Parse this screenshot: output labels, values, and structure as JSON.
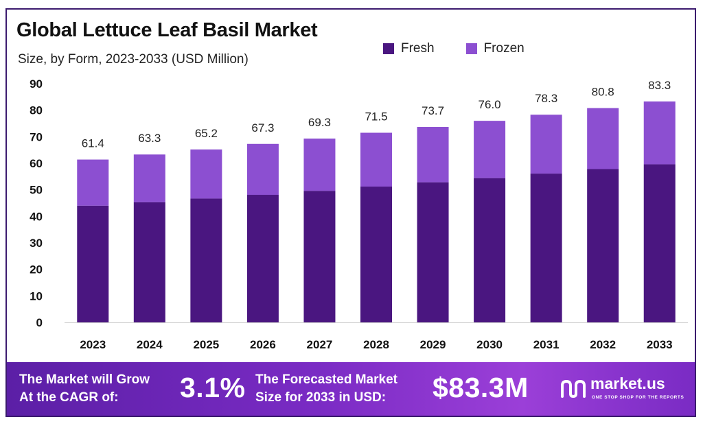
{
  "chart_data": {
    "type": "bar",
    "stacked": true,
    "title": "Global Lettuce Leaf Basil Market",
    "subtitle": "Size, by Form, 2023-2033 (USD Million)",
    "categories": [
      "2023",
      "2024",
      "2025",
      "2026",
      "2027",
      "2028",
      "2029",
      "2030",
      "2031",
      "2032",
      "2033"
    ],
    "series": [
      {
        "name": "Fresh",
        "color": "#4a1680",
        "values": [
          44.0,
          45.3,
          46.7,
          48.1,
          49.6,
          51.2,
          52.8,
          54.4,
          56.1,
          57.8,
          59.6
        ]
      },
      {
        "name": "Frozen",
        "color": "#8c4fd1",
        "values": [
          17.4,
          18.0,
          18.5,
          19.2,
          19.7,
          20.3,
          20.9,
          21.6,
          22.2,
          23.0,
          23.7
        ]
      }
    ],
    "totals": [
      "61.4",
      "63.3",
      "65.2",
      "67.3",
      "69.3",
      "71.5",
      "73.7",
      "76.0",
      "78.3",
      "80.8",
      "83.3"
    ],
    "yticks": [
      0,
      10,
      20,
      30,
      40,
      50,
      60,
      70,
      80,
      90
    ],
    "ylim": [
      0,
      90
    ],
    "grid": false,
    "legend_position": "top-right"
  },
  "banner": {
    "cagr_label_line1": "The Market will Grow",
    "cagr_label_line2": "At the CAGR of:",
    "cagr_value": "3.1%",
    "forecast_label_line1": "The Forecasted Market",
    "forecast_label_line2": "Size for 2033 in USD:",
    "forecast_value": "$83.3M"
  },
  "brand": {
    "name": "market.us",
    "tagline": "ONE STOP SHOP FOR THE REPORTS"
  }
}
